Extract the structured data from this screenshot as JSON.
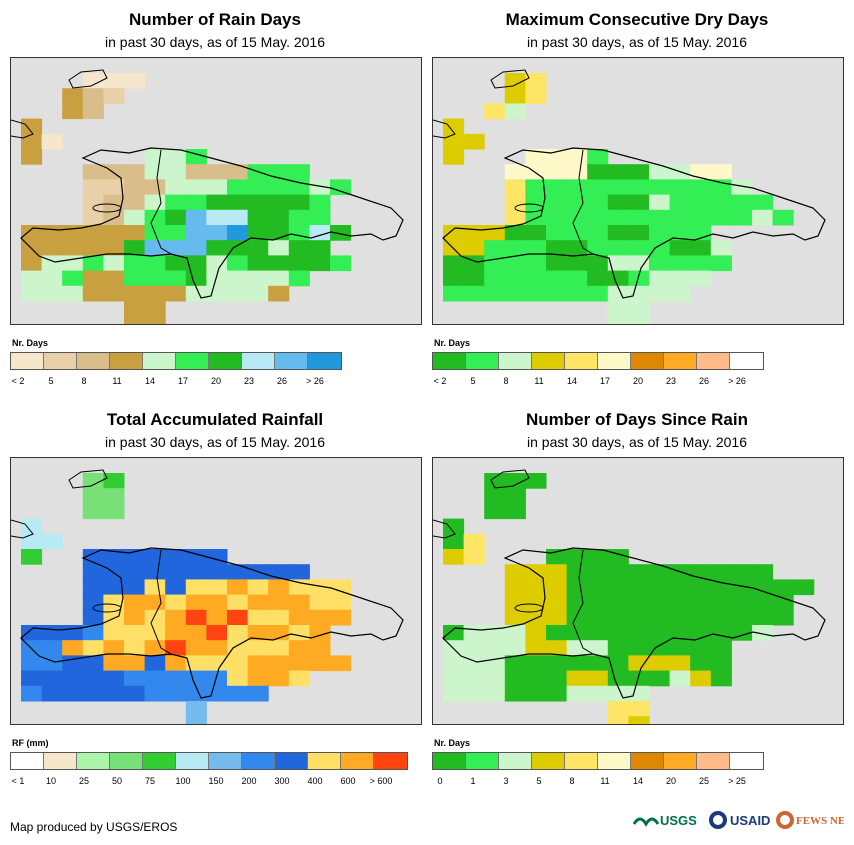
{
  "panels": [
    {
      "id": "rain-days",
      "title": "Number of Rain Days",
      "subtitle": "in past 30 days, as of 15 May. 2016",
      "legend_title": "Nr. Days",
      "legend_colors": [
        "#f5e6cc",
        "#e8d0a8",
        "#d9bd8a",
        "#c9a040",
        "#ccf5cc",
        "#33ee55",
        "#22bb22",
        "#b8eaf6",
        "#66bbee",
        "#2299dd"
      ],
      "legend_labels": [
        "< 2",
        "5",
        "8",
        "11",
        "14",
        "17",
        "20",
        "23",
        "26",
        "> 26"
      ]
    },
    {
      "id": "max-dry-days",
      "title": "Maximum Consecutive Dry Days",
      "subtitle": "in past 30 days, as of 15 May. 2016",
      "legend_title": "Nr. Days",
      "legend_colors": [
        "#22bb22",
        "#33ee55",
        "#ccf5cc",
        "#ddcc00",
        "#ffe566",
        "#fff8c8",
        "#dd8800",
        "#ffaa22",
        "#ffbb88",
        "#ffffff"
      ],
      "legend_labels": [
        "< 2",
        "5",
        "8",
        "11",
        "14",
        "17",
        "20",
        "23",
        "26",
        "> 26"
      ]
    },
    {
      "id": "total-rainfall",
      "title": "Total Accumulated Rainfall",
      "subtitle": "in past 30 days, as of 15 May. 2016",
      "legend_title": "RF (mm)",
      "legend_colors": [
        "#ffffff",
        "#f5e6cc",
        "#aaf5aa",
        "#77e077",
        "#33cc33",
        "#b8eaf6",
        "#77bbee",
        "#3388ee",
        "#2266dd",
        "#ffe066",
        "#ffaa22",
        "#ff4411"
      ],
      "legend_labels": [
        "< 1",
        "10",
        "25",
        "50",
        "75",
        "100",
        "150",
        "200",
        "300",
        "400",
        "600",
        "> 600"
      ]
    },
    {
      "id": "days-since-rain",
      "title": "Number of Days Since Rain",
      "subtitle": "in past 30 days, as of 15 May. 2016",
      "legend_title": "Nr. Days",
      "legend_colors": [
        "#22bb22",
        "#33ee55",
        "#ccf5cc",
        "#ddcc00",
        "#ffe566",
        "#fff8c8",
        "#dd8800",
        "#ffaa22",
        "#ffbb88",
        "#ffffff"
      ],
      "legend_labels": [
        "0",
        "1",
        "3",
        "5",
        "8",
        "11",
        "14",
        "20",
        "25",
        "> 25"
      ]
    }
  ],
  "credit": "Map produced by USGS/EROS",
  "logos": [
    "USGS",
    "USAID",
    "FEWS NET"
  ]
}
